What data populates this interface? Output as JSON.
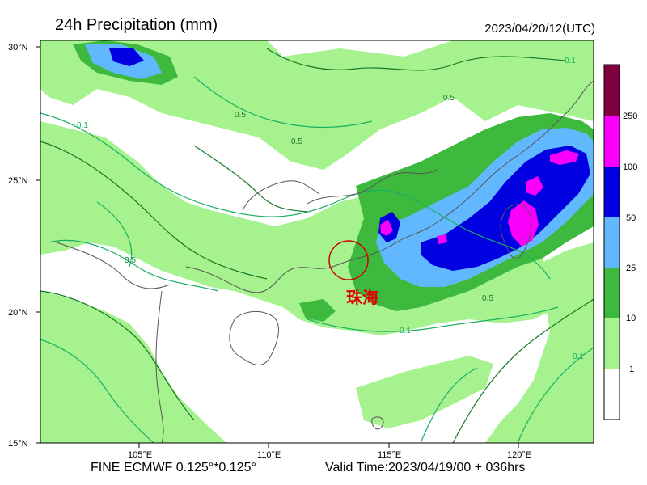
{
  "title": "24h Precipitation (mm)",
  "datetime": "2023/04/20/12(UTC)",
  "footer": {
    "model": "FINE ECMWF 0.125°*0.125°",
    "valid_time": "Valid Time:2023/04/19/00 + 036hrs"
  },
  "map": {
    "lat_labels": [
      "30°N",
      "25°N",
      "20°N",
      "15°N"
    ],
    "lon_labels": [
      "105°E",
      "110°E",
      "115°E",
      "120°E"
    ],
    "highlight_city": "珠海",
    "contour_labels": [
      "0.5",
      "0.1"
    ],
    "colors": {
      "light_green": "#a6f28f",
      "green": "#3dba3d",
      "light_blue": "#61b8ff",
      "blue": "#0000e1",
      "magenta": "#fa00fa",
      "maroon": "#800040",
      "highlight_circle": "#d00000"
    }
  },
  "colorbar": {
    "labels": [
      "250",
      "100",
      "50",
      "25",
      "10",
      "1"
    ]
  }
}
